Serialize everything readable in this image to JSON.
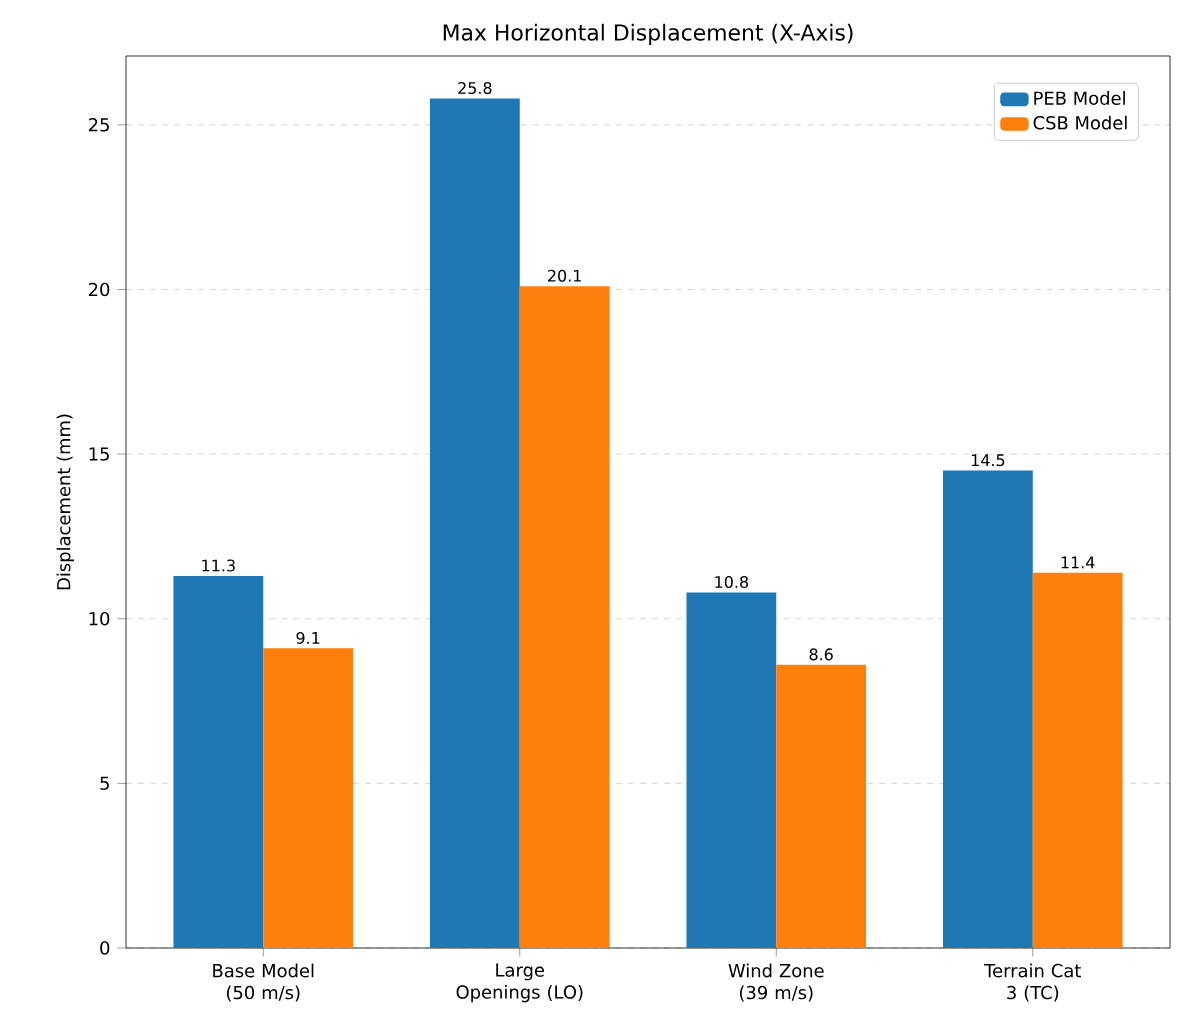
{
  "chart_data": {
    "type": "bar",
    "title": "Max Horizontal Displacement (X-Axis)",
    "ylabel": "Displacement (mm)",
    "categories": [
      "Base Model (50 m/s)",
      "Large Openings (LO)",
      "Wind Zone (39 m/s)",
      "Terrain Cat 3 (TC)"
    ],
    "series": [
      {
        "name": "PEB Model",
        "color": "#1f77b4",
        "values": [
          11.3,
          25.8,
          10.8,
          14.5
        ]
      },
      {
        "name": "CSB Model",
        "color": "#ff7f0e",
        "values": [
          9.1,
          20.1,
          8.6,
          11.4
        ]
      }
    ],
    "ylim": [
      0,
      27.09
    ],
    "yticks": [
      0,
      5,
      10,
      15,
      20,
      25
    ],
    "grid": "y",
    "legend": "top right",
    "data_labels": true
  }
}
